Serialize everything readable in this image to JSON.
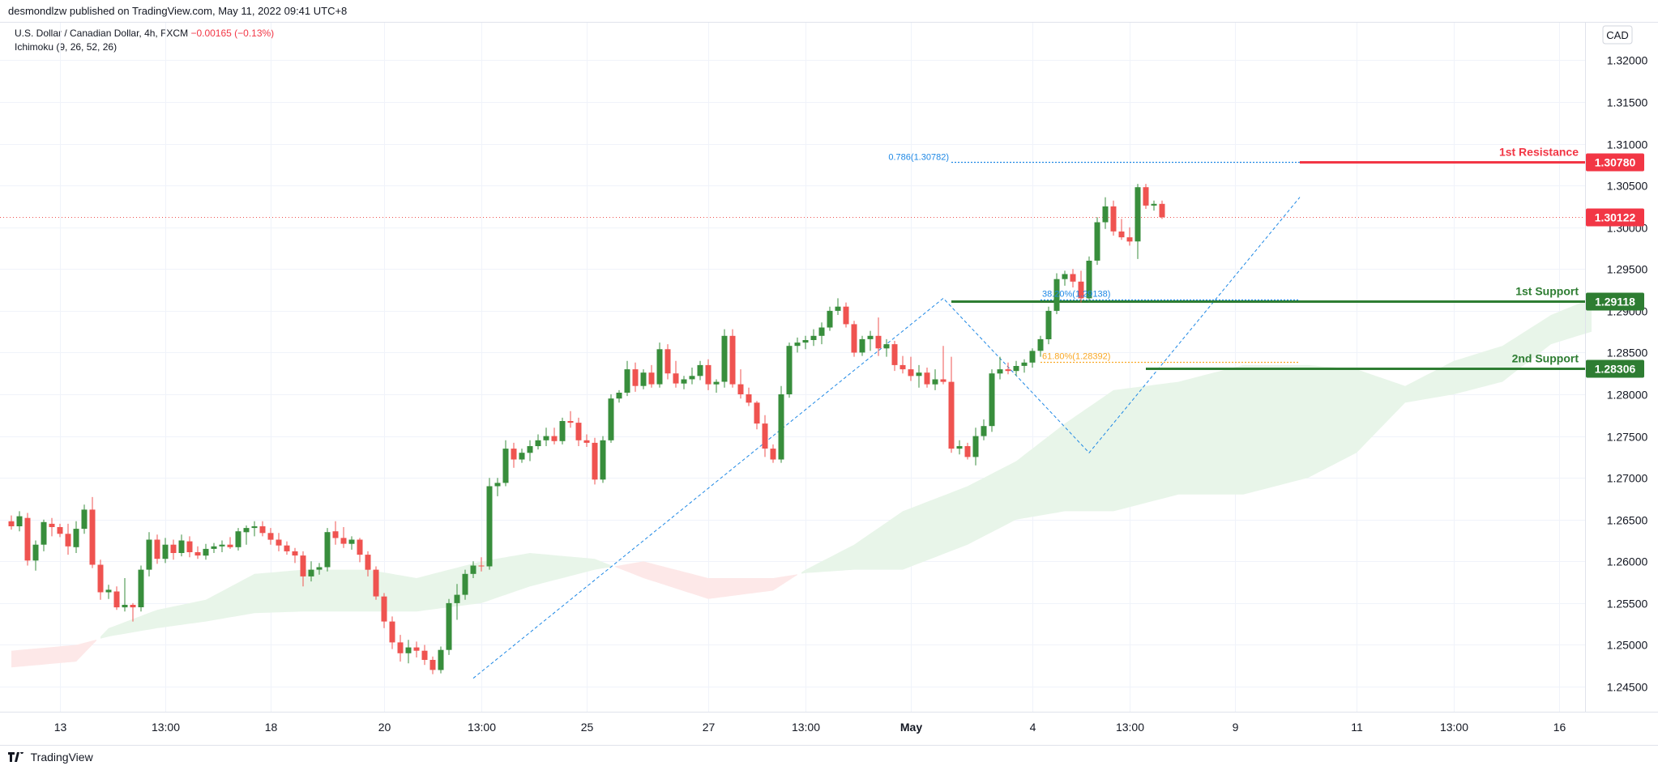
{
  "header": {
    "published": "desmondlzw published on TradingView.com, May 11, 2022 09:41 UTC+8"
  },
  "legend": {
    "symbol": "U.S. Dollar / Canadian Dollar, 4h, FXCM",
    "change": "−0.00165 (−0.13%)",
    "indicator": "Ichimoku (9, 26, 52, 26)"
  },
  "currency_badge": "CAD",
  "footer": {
    "brand": "TradingView"
  },
  "colors": {
    "up": "#388e3c",
    "down": "#ef5350",
    "resistance": "#f23645",
    "support": "#2e7d32",
    "fib": "#1e88e5",
    "fib_alt": "#f9a825",
    "cloud_bull": "#e8f5e9",
    "cloud_bear": "#fde8e8"
  },
  "chart_data": {
    "type": "candlestick",
    "ylim": [
      1.242,
      1.3245
    ],
    "y_ticks": [
      "1.24500",
      "1.25000",
      "1.25500",
      "1.26000",
      "1.26500",
      "1.27000",
      "1.27500",
      "1.28000",
      "1.28500",
      "1.29000",
      "1.29500",
      "1.30000",
      "1.30500",
      "1.31000",
      "1.31500",
      "1.32000"
    ],
    "x_ticks": [
      {
        "label": "13",
        "bar": 6
      },
      {
        "label": "13:00",
        "bar": 19
      },
      {
        "label": "18",
        "bar": 32
      },
      {
        "label": "20",
        "bar": 46
      },
      {
        "label": "13:00",
        "bar": 58
      },
      {
        "label": "25",
        "bar": 71
      },
      {
        "label": "27",
        "bar": 86
      },
      {
        "label": "13:00",
        "bar": 98
      },
      {
        "label": "May",
        "bar": 111
      },
      {
        "label": "4",
        "bar": 126
      },
      {
        "label": "13:00",
        "bar": 138
      },
      {
        "label": "9",
        "bar": 151
      },
      {
        "label": "11",
        "bar": 166
      },
      {
        "label": "13:00",
        "bar": 178
      },
      {
        "label": "16",
        "bar": 191
      }
    ],
    "candles": [
      [
        1.2648,
        1.2655,
        1.2638,
        1.2642
      ],
      [
        1.2642,
        1.266,
        1.2636,
        1.2654
      ],
      [
        1.2652,
        1.2658,
        1.2595,
        1.2601
      ],
      [
        1.2601,
        1.2625,
        1.2589,
        1.262
      ],
      [
        1.262,
        1.265,
        1.2612,
        1.2647
      ],
      [
        1.2645,
        1.2652,
        1.263,
        1.2641
      ],
      [
        1.2641,
        1.2645,
        1.2629,
        1.2633
      ],
      [
        1.2633,
        1.2645,
        1.2608,
        1.2618
      ],
      [
        1.2617,
        1.2648,
        1.261,
        1.2639
      ],
      [
        1.2639,
        1.2668,
        1.2633,
        1.2662
      ],
      [
        1.2662,
        1.2677,
        1.2592,
        1.2596
      ],
      [
        1.2596,
        1.2602,
        1.2554,
        1.2563
      ],
      [
        1.2563,
        1.2572,
        1.2555,
        1.2566
      ],
      [
        1.2564,
        1.257,
        1.2542,
        1.2545
      ],
      [
        1.2545,
        1.258,
        1.254,
        1.2548
      ],
      [
        1.2548,
        1.255,
        1.2528,
        1.2545
      ],
      [
        1.2545,
        1.2595,
        1.254,
        1.259
      ],
      [
        1.259,
        1.2635,
        1.2582,
        1.2626
      ],
      [
        1.2626,
        1.2632,
        1.2597,
        1.2603
      ],
      [
        1.2603,
        1.2628,
        1.2598,
        1.262
      ],
      [
        1.262,
        1.2626,
        1.2602,
        1.261
      ],
      [
        1.261,
        1.2632,
        1.2606,
        1.2625
      ],
      [
        1.2624,
        1.263,
        1.2605,
        1.2611
      ],
      [
        1.2611,
        1.2618,
        1.2603,
        1.2607
      ],
      [
        1.2607,
        1.2621,
        1.2602,
        1.2615
      ],
      [
        1.2615,
        1.2622,
        1.261,
        1.2618
      ],
      [
        1.2618,
        1.2625,
        1.2611,
        1.262
      ],
      [
        1.262,
        1.2629,
        1.2615,
        1.2617
      ],
      [
        1.2617,
        1.264,
        1.2613,
        1.2636
      ],
      [
        1.2635,
        1.2643,
        1.262,
        1.264
      ],
      [
        1.264,
        1.2648,
        1.263,
        1.2642
      ],
      [
        1.2642,
        1.2648,
        1.263,
        1.2634
      ],
      [
        1.2634,
        1.264,
        1.262,
        1.2626
      ],
      [
        1.2626,
        1.2634,
        1.2612,
        1.2619
      ],
      [
        1.2619,
        1.2624,
        1.2608,
        1.2612
      ],
      [
        1.2612,
        1.2616,
        1.2598,
        1.2607
      ],
      [
        1.2607,
        1.2612,
        1.257,
        1.2582
      ],
      [
        1.2582,
        1.26,
        1.2576,
        1.259
      ],
      [
        1.259,
        1.2598,
        1.2584,
        1.2593
      ],
      [
        1.2593,
        1.264,
        1.2588,
        1.2635
      ],
      [
        1.2636,
        1.2648,
        1.262,
        1.2628
      ],
      [
        1.2628,
        1.2641,
        1.2616,
        1.2621
      ],
      [
        1.2621,
        1.263,
        1.2614,
        1.2626
      ],
      [
        1.2626,
        1.2628,
        1.2599,
        1.2608
      ],
      [
        1.2608,
        1.2612,
        1.2582,
        1.259
      ],
      [
        1.259,
        1.2594,
        1.2554,
        1.2558
      ],
      [
        1.2558,
        1.2562,
        1.252,
        1.2528
      ],
      [
        1.2528,
        1.2534,
        1.2495,
        1.2503
      ],
      [
        1.2503,
        1.2512,
        1.248,
        1.249
      ],
      [
        1.249,
        1.2506,
        1.2478,
        1.2497
      ],
      [
        1.2497,
        1.2504,
        1.2485,
        1.2493
      ],
      [
        1.2493,
        1.25,
        1.2476,
        1.2482
      ],
      [
        1.2482,
        1.2486,
        1.2465,
        1.247
      ],
      [
        1.247,
        1.2498,
        1.2466,
        1.2494
      ],
      [
        1.2494,
        1.2555,
        1.2488,
        1.255
      ],
      [
        1.255,
        1.2573,
        1.253,
        1.256
      ],
      [
        1.256,
        1.259,
        1.2554,
        1.2585
      ],
      [
        1.2585,
        1.26,
        1.258,
        1.2595
      ],
      [
        1.2595,
        1.2605,
        1.2588,
        1.2594
      ],
      [
        1.2594,
        1.27,
        1.259,
        1.269
      ],
      [
        1.269,
        1.27,
        1.2678,
        1.2694
      ],
      [
        1.2694,
        1.2745,
        1.269,
        1.2735
      ],
      [
        1.2735,
        1.2742,
        1.2712,
        1.2722
      ],
      [
        1.2722,
        1.2735,
        1.2718,
        1.273
      ],
      [
        1.273,
        1.2745,
        1.272,
        1.2738
      ],
      [
        1.2738,
        1.2752,
        1.2734,
        1.2745
      ],
      [
        1.2745,
        1.276,
        1.2738,
        1.275
      ],
      [
        1.275,
        1.276,
        1.274,
        1.2744
      ],
      [
        1.2744,
        1.2772,
        1.274,
        1.2768
      ],
      [
        1.2768,
        1.278,
        1.276,
        1.2766
      ],
      [
        1.2766,
        1.2772,
        1.2738,
        1.2745
      ],
      [
        1.2745,
        1.2752,
        1.2737,
        1.2742
      ],
      [
        1.2742,
        1.2748,
        1.2692,
        1.2698
      ],
      [
        1.2698,
        1.275,
        1.2694,
        1.2745
      ],
      [
        1.2745,
        1.28,
        1.2742,
        1.2795
      ],
      [
        1.2795,
        1.2805,
        1.279,
        1.2802
      ],
      [
        1.2802,
        1.284,
        1.2798,
        1.283
      ],
      [
        1.283,
        1.2838,
        1.2803,
        1.281
      ],
      [
        1.281,
        1.283,
        1.2806,
        1.2826
      ],
      [
        1.2826,
        1.2835,
        1.2808,
        1.2812
      ],
      [
        1.2812,
        1.2862,
        1.2808,
        1.2854
      ],
      [
        1.2854,
        1.286,
        1.2818,
        1.2825
      ],
      [
        1.2825,
        1.284,
        1.2808,
        1.2813
      ],
      [
        1.2813,
        1.2822,
        1.2806,
        1.2818
      ],
      [
        1.2818,
        1.2832,
        1.2812,
        1.2822
      ],
      [
        1.2822,
        1.284,
        1.2817,
        1.2835
      ],
      [
        1.2835,
        1.2842,
        1.2805,
        1.2812
      ],
      [
        1.2812,
        1.2818,
        1.2802,
        1.2815
      ],
      [
        1.2815,
        1.2878,
        1.2808,
        1.287
      ],
      [
        1.287,
        1.2878,
        1.2808,
        1.2812
      ],
      [
        1.2812,
        1.283,
        1.2795,
        1.28
      ],
      [
        1.28,
        1.2808,
        1.2786,
        1.279
      ],
      [
        1.279,
        1.2792,
        1.2758,
        1.2765
      ],
      [
        1.2765,
        1.2775,
        1.2725,
        1.2735
      ],
      [
        1.2735,
        1.274,
        1.2718,
        1.2722
      ],
      [
        1.2722,
        1.281,
        1.2718,
        1.28
      ],
      [
        1.28,
        1.2862,
        1.2796,
        1.2858
      ],
      [
        1.2858,
        1.2868,
        1.285,
        1.2862
      ],
      [
        1.2862,
        1.287,
        1.2854,
        1.2865
      ],
      [
        1.2865,
        1.2878,
        1.2858,
        1.287
      ],
      [
        1.287,
        1.2886,
        1.286,
        1.288
      ],
      [
        1.288,
        1.2905,
        1.2876,
        1.29
      ],
      [
        1.29,
        1.2915,
        1.2895,
        1.2905
      ],
      [
        1.2905,
        1.291,
        1.288,
        1.2884
      ],
      [
        1.2884,
        1.2888,
        1.2845,
        1.285
      ],
      [
        1.285,
        1.287,
        1.2846,
        1.2866
      ],
      [
        1.2866,
        1.2876,
        1.2852,
        1.287
      ],
      [
        1.287,
        1.2892,
        1.2846,
        1.2855
      ],
      [
        1.2855,
        1.2866,
        1.2845,
        1.286
      ],
      [
        1.286,
        1.2864,
        1.2828,
        1.2835
      ],
      [
        1.2835,
        1.2846,
        1.2825,
        1.283
      ],
      [
        1.283,
        1.2845,
        1.2816,
        1.2822
      ],
      [
        1.2822,
        1.2835,
        1.2808,
        1.2826
      ],
      [
        1.2826,
        1.2832,
        1.2808,
        1.2812
      ],
      [
        1.2812,
        1.283,
        1.2805,
        1.2818
      ],
      [
        1.2818,
        1.2858,
        1.2812,
        1.2815
      ],
      [
        1.2815,
        1.2845,
        1.273,
        1.2735
      ],
      [
        1.2735,
        1.2745,
        1.2728,
        1.2738
      ],
      [
        1.2738,
        1.2742,
        1.2722,
        1.2725
      ],
      [
        1.2725,
        1.276,
        1.2715,
        1.275
      ],
      [
        1.275,
        1.277,
        1.2745,
        1.2762
      ],
      [
        1.2762,
        1.283,
        1.2755,
        1.2825
      ],
      [
        1.2825,
        1.2845,
        1.2818,
        1.283
      ],
      [
        1.283,
        1.2838,
        1.2824,
        1.2828
      ],
      [
        1.2828,
        1.284,
        1.2822,
        1.2834
      ],
      [
        1.2834,
        1.2842,
        1.2826,
        1.2838
      ],
      [
        1.2838,
        1.2855,
        1.2832,
        1.2852
      ],
      [
        1.2852,
        1.287,
        1.2845,
        1.2866
      ],
      [
        1.2866,
        1.2905,
        1.286,
        1.29
      ],
      [
        1.29,
        1.2945,
        1.2896,
        1.2938
      ],
      [
        1.2938,
        1.2948,
        1.293,
        1.2944
      ],
      [
        1.2944,
        1.295,
        1.2928,
        1.2935
      ],
      [
        1.2935,
        1.2948,
        1.291,
        1.2915
      ],
      [
        1.2915,
        1.2965,
        1.291,
        1.296
      ],
      [
        1.296,
        1.3012,
        1.2955,
        1.3006
      ],
      [
        1.3006,
        1.3036,
        1.2998,
        1.3025
      ],
      [
        1.3025,
        1.3032,
        1.299,
        1.2995
      ],
      [
        1.2995,
        1.301,
        1.2985,
        1.2988
      ],
      [
        1.2988,
        1.3,
        1.2978,
        1.2983
      ],
      [
        1.2983,
        1.3052,
        1.2962,
        1.3048
      ],
      [
        1.3048,
        1.3052,
        1.3022,
        1.3026
      ],
      [
        1.3026,
        1.3032,
        1.302,
        1.3028
      ],
      [
        1.3028,
        1.3032,
        1.301,
        1.3012
      ]
    ],
    "cloud": [
      {
        "bar": 0,
        "a": 1.2473,
        "b": 1.2493
      },
      {
        "bar": 8,
        "a": 1.248,
        "b": 1.25
      },
      {
        "bar": 12,
        "a": 1.252,
        "b": 1.251
      },
      {
        "bar": 18,
        "a": 1.2542,
        "b": 1.252
      },
      {
        "bar": 24,
        "a": 1.2554,
        "b": 1.2528
      },
      {
        "bar": 30,
        "a": 1.2585,
        "b": 1.2538
      },
      {
        "bar": 36,
        "a": 1.259,
        "b": 1.254
      },
      {
        "bar": 44,
        "a": 1.259,
        "b": 1.254
      },
      {
        "bar": 50,
        "a": 1.258,
        "b": 1.254
      },
      {
        "bar": 58,
        "a": 1.26,
        "b": 1.255
      },
      {
        "bar": 64,
        "a": 1.261,
        "b": 1.257
      },
      {
        "bar": 72,
        "a": 1.2603,
        "b": 1.259
      },
      {
        "bar": 78,
        "a": 1.258,
        "b": 1.26
      },
      {
        "bar": 86,
        "a": 1.2555,
        "b": 1.258
      },
      {
        "bar": 94,
        "a": 1.2565,
        "b": 1.258
      },
      {
        "bar": 98,
        "a": 1.259,
        "b": 1.2586
      },
      {
        "bar": 104,
        "a": 1.262,
        "b": 1.259
      },
      {
        "bar": 110,
        "a": 1.266,
        "b": 1.259
      },
      {
        "bar": 118,
        "a": 1.269,
        "b": 1.262
      },
      {
        "bar": 124,
        "a": 1.272,
        "b": 1.265
      },
      {
        "bar": 130,
        "a": 1.2765,
        "b": 1.266
      },
      {
        "bar": 136,
        "a": 1.2805,
        "b": 1.266
      },
      {
        "bar": 144,
        "a": 1.2815,
        "b": 1.268
      },
      {
        "bar": 152,
        "a": 1.2835,
        "b": 1.268
      },
      {
        "bar": 160,
        "a": 1.2835,
        "b": 1.27
      },
      {
        "bar": 166,
        "a": 1.283,
        "b": 1.273
      },
      {
        "bar": 172,
        "a": 1.281,
        "b": 1.279
      },
      {
        "bar": 178,
        "a": 1.284,
        "b": 1.28
      },
      {
        "bar": 184,
        "a": 1.2858,
        "b": 1.2815
      },
      {
        "bar": 190,
        "a": 1.2895,
        "b": 1.286
      },
      {
        "bar": 195,
        "a": 1.2915,
        "b": 1.2875
      }
    ],
    "zigzag": [
      {
        "bar": 57,
        "price": 1.246
      },
      {
        "bar": 115,
        "price": 1.2915
      },
      {
        "bar": 133,
        "price": 1.273
      },
      {
        "bar": 159,
        "price": 1.3036
      }
    ],
    "current_price": {
      "value": 1.30122,
      "label": "1.30122"
    },
    "levels": [
      {
        "label": "1st Resistance",
        "price": 1.3078,
        "price_label": "1.30780",
        "kind": "resistance",
        "start_bar": 159
      },
      {
        "label": "1st Support",
        "price": 1.29118,
        "price_label": "1.29118",
        "kind": "support",
        "start_bar": 116
      },
      {
        "label": "2nd Support",
        "price": 1.28306,
        "price_label": "1.28306",
        "kind": "support",
        "start_bar": 140
      }
    ],
    "fib_labels": [
      {
        "text": "0.786(1.30782)",
        "price": 1.30782,
        "from_bar": 116,
        "to_bar": 159,
        "color": "fib"
      },
      {
        "text": "38.20%(1.29138)",
        "price": 1.29138,
        "from_bar": 127,
        "to_bar": 159,
        "color": "fib"
      },
      {
        "text": "61.80%(1.28392)",
        "price": 1.28392,
        "from_bar": 127,
        "to_bar": 159,
        "color": "fib_alt"
      }
    ]
  }
}
